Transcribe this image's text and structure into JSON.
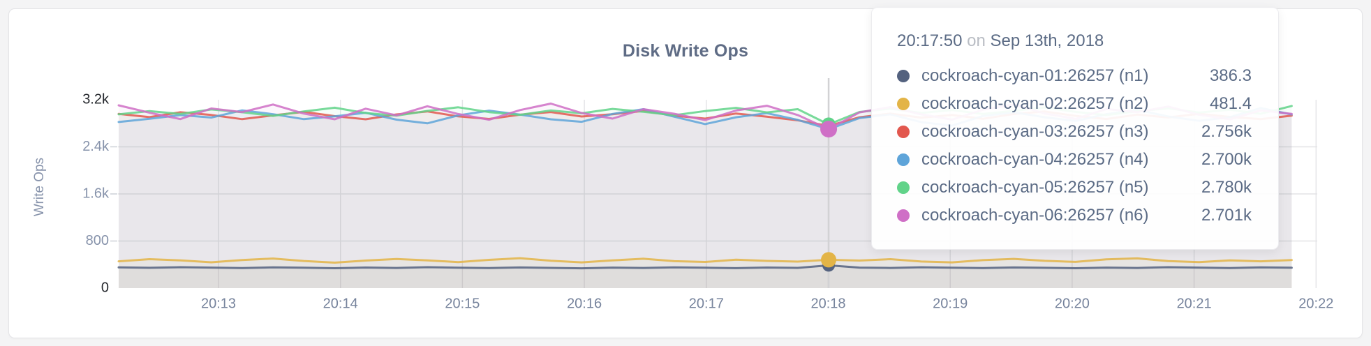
{
  "page": {
    "background": "#f4f4f5",
    "card_background": "#ffffff",
    "card_border": "#e4e4e7"
  },
  "tooltip": {
    "time": "20:17:50",
    "conjunction": "on",
    "date": "Sep 13th, 2018",
    "rows": [
      {
        "name": "cockroach-cyan-01:26257 (n1)",
        "value": "386.3",
        "color": "#54627f"
      },
      {
        "name": "cockroach-cyan-02:26257 (n2)",
        "value": "481.4",
        "color": "#e3b447"
      },
      {
        "name": "cockroach-cyan-03:26257 (n3)",
        "value": "2.756k",
        "color": "#e2574e"
      },
      {
        "name": "cockroach-cyan-04:26257 (n4)",
        "value": "2.700k",
        "color": "#5ea4d9"
      },
      {
        "name": "cockroach-cyan-05:26257 (n5)",
        "value": "2.780k",
        "color": "#61d389"
      },
      {
        "name": "cockroach-cyan-06:26257 (n6)",
        "value": "2.701k",
        "color": "#cf6fc6"
      }
    ]
  },
  "chart_data": {
    "type": "line",
    "title": "Disk Write Ops",
    "xlabel": "",
    "ylabel": "Write Ops",
    "ylim": [
      0,
      3200
    ],
    "grid": true,
    "legend_position": "none",
    "x_start_time": "20:12:05",
    "x_interval_seconds": 15,
    "x_ticks": [
      "20:13",
      "20:14",
      "20:15",
      "20:16",
      "20:17",
      "20:18",
      "20:19",
      "20:20",
      "20:21",
      "20:22"
    ],
    "y_ticks": [
      0,
      800,
      1600,
      2400,
      3200
    ],
    "y_tick_labels": [
      "0",
      "800",
      "1.6k",
      "2.4k",
      "3.2k"
    ],
    "hover": {
      "index": 23,
      "time": "20:17:50",
      "date": "Sep 13th, 2018"
    },
    "series": [
      {
        "name": "cockroach-cyan-01:26257 (n1)",
        "color": "#54627f",
        "values": [
          352,
          345,
          356,
          349,
          341,
          352,
          346,
          338,
          350,
          343,
          355,
          347,
          340,
          351,
          344,
          336,
          348,
          342,
          353,
          346,
          339,
          350,
          344,
          386.3,
          349,
          342,
          354,
          347,
          340,
          351,
          345,
          338,
          349,
          343,
          355,
          348,
          341,
          352,
          346
        ]
      },
      {
        "name": "cockroach-cyan-02:26257 (n2)",
        "color": "#e3b447",
        "values": [
          455,
          492,
          470,
          438,
          476,
          502,
          461,
          433,
          468,
          495,
          472,
          441,
          480,
          508,
          466,
          437,
          471,
          499,
          458,
          444,
          483,
          462,
          450,
          481.4,
          468,
          492,
          451,
          437,
          475,
          497,
          463,
          446,
          488,
          505,
          459,
          442,
          470,
          455,
          478
        ]
      },
      {
        "name": "cockroach-cyan-03:26257 (n3)",
        "color": "#e2574e",
        "values": [
          2960,
          2905,
          2988,
          2942,
          2871,
          2935,
          2994,
          2922,
          2868,
          2951,
          3002,
          2918,
          2874,
          2946,
          2991,
          2915,
          2955,
          3010,
          2928,
          2880,
          2967,
          2912,
          2850,
          2756,
          2902,
          2964,
          2897,
          2940,
          2876,
          2958,
          3001,
          2926,
          2873,
          2947,
          2899,
          2962,
          2908,
          2871,
          2930
        ]
      },
      {
        "name": "cockroach-cyan-04:26257 (n4)",
        "color": "#5ea4d9",
        "values": [
          2822,
          2876,
          2940,
          2898,
          3020,
          2955,
          2870,
          2918,
          2980,
          2862,
          2800,
          2935,
          3015,
          2948,
          2868,
          2825,
          2960,
          3040,
          2912,
          2786,
          2902,
          2973,
          2858,
          2700,
          2890,
          2952,
          2820,
          2760,
          2925,
          2988,
          2902,
          2840,
          2956,
          3028,
          2915,
          2842,
          2905,
          3060,
          2950
        ]
      },
      {
        "name": "cockroach-cyan-05:26257 (n5)",
        "color": "#61d389",
        "values": [
          2952,
          3008,
          2960,
          3035,
          2988,
          2926,
          3002,
          3065,
          2975,
          2930,
          3010,
          3072,
          2990,
          2944,
          3018,
          2970,
          3045,
          2995,
          2938,
          3008,
          3062,
          2985,
          3040,
          2780,
          2992,
          3048,
          2976,
          3025,
          2958,
          3012,
          3070,
          2994,
          2940,
          3005,
          3055,
          2982,
          3030,
          2962,
          3095
        ]
      },
      {
        "name": "cockroach-cyan-06:26257 (n6)",
        "color": "#cf6fc6",
        "values": [
          3105,
          2980,
          2872,
          3052,
          2990,
          3120,
          2965,
          2868,
          3048,
          2935,
          3090,
          2958,
          2860,
          3025,
          3135,
          2975,
          2880,
          3040,
          2962,
          2855,
          3018,
          3098,
          2940,
          2701,
          2985,
          3075,
          2952,
          2862,
          3030,
          3118,
          2968,
          2875,
          3042,
          2990,
          3085,
          2945,
          2868,
          3020,
          2960
        ]
      }
    ],
    "axis_colors": {
      "tick_label": "#8793ab",
      "tick_label_minmax": "#26292e",
      "x_tick_label": "#76839c",
      "axis_title": "#8793ab",
      "gridline": "#e3e3e6",
      "guideline": "#d2d2d4"
    }
  }
}
